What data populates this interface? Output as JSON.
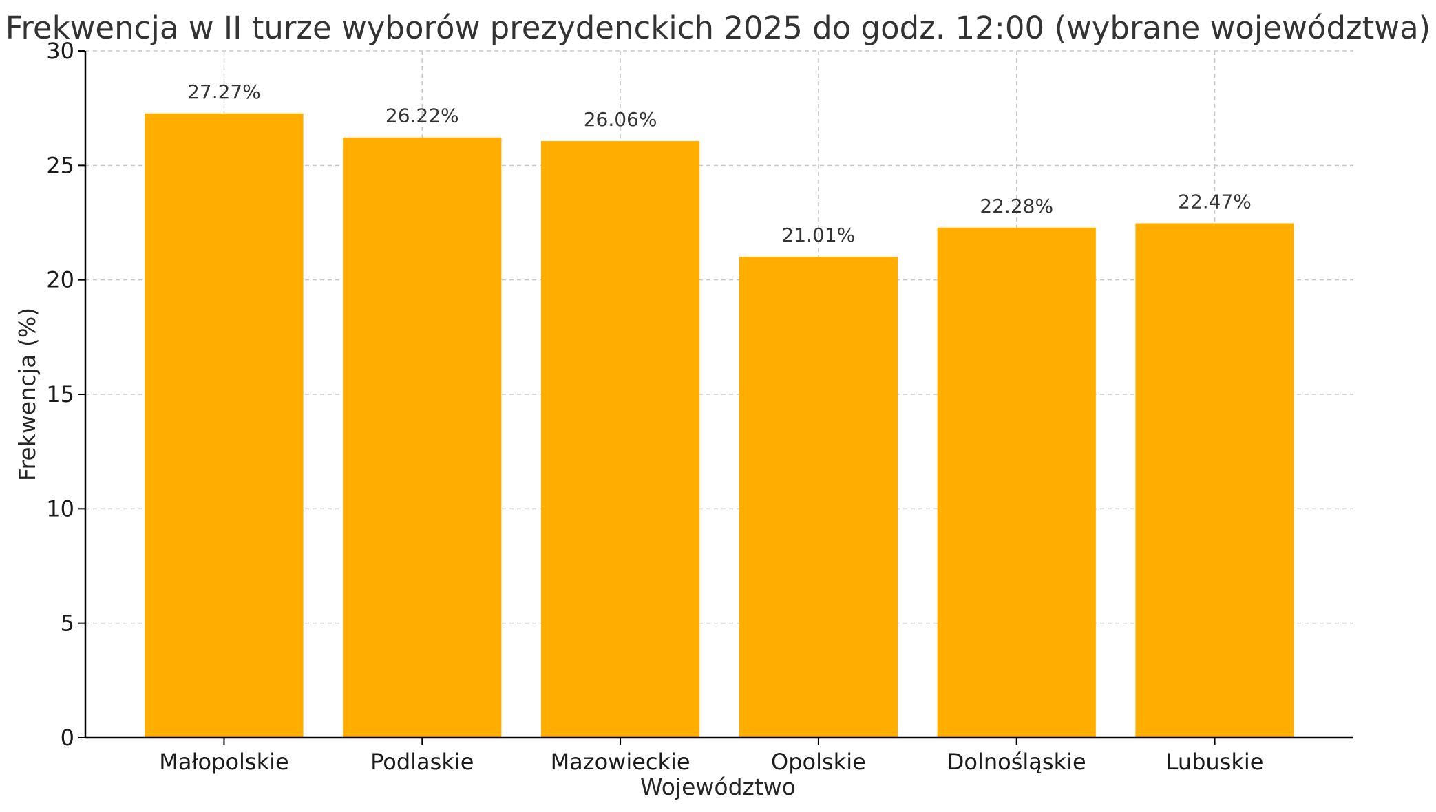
{
  "chart_data": {
    "type": "bar",
    "title": "Frekwencja w II turze wyborów prezydenckich 2025 do godz. 12:00 (wybrane województwa)",
    "xlabel": "Województwo",
    "ylabel": "Frekwencja (%)",
    "categories": [
      "Małopolskie",
      "Podlaskie",
      "Mazowieckie",
      "Opolskie",
      "Dolnośląskie",
      "Lubuskie"
    ],
    "values": [
      27.27,
      26.22,
      26.06,
      21.01,
      22.28,
      22.47
    ],
    "data_labels": [
      "27.27%",
      "26.22%",
      "26.06%",
      "21.01%",
      "22.28%",
      "22.47%"
    ],
    "y_ticks": [
      0,
      5,
      10,
      15,
      20,
      25,
      30
    ],
    "ylim": [
      0,
      30
    ],
    "bar_color": "#FFAE00",
    "grid": true,
    "legend": "none"
  }
}
